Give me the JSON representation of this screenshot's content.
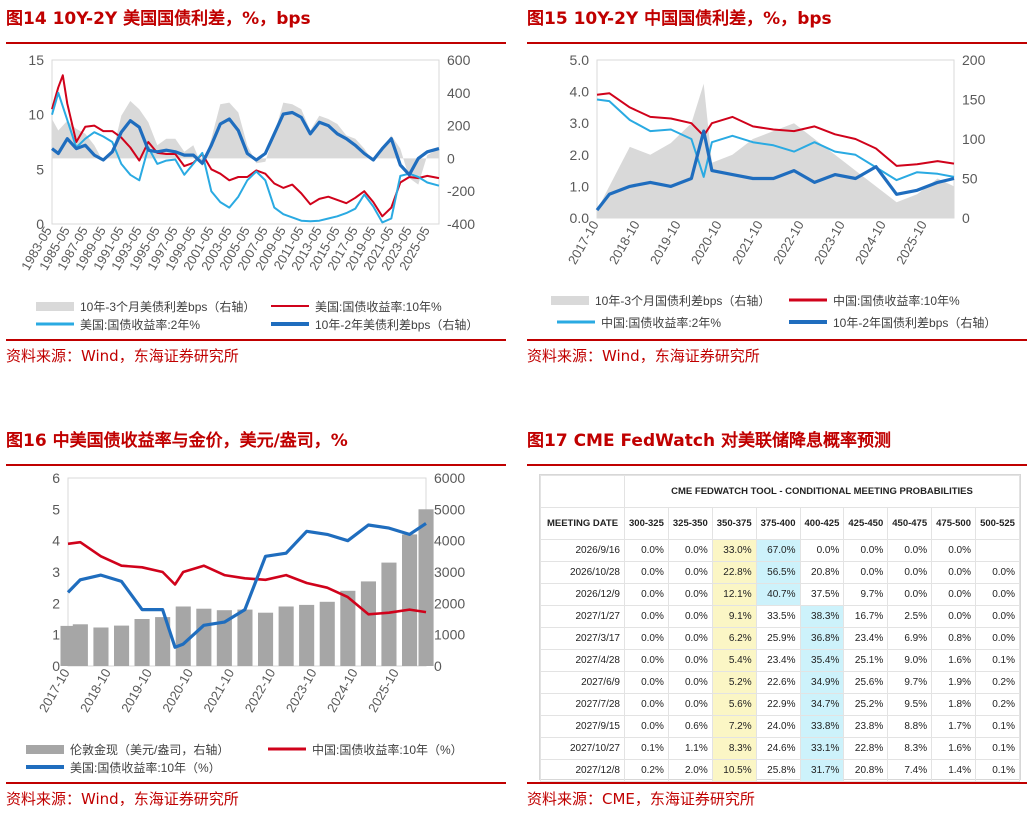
{
  "colors": {
    "red": "#d0021b",
    "blue": "#1f6dbe",
    "light_blue": "#2aaae2",
    "gray": "#d9d9d9",
    "bar_gray": "#a6a6a6",
    "brand_red": "#c00000",
    "highlight_yellow": "#fbf6c5",
    "highlight_blue": "#cdf2fb"
  },
  "panels": [
    {
      "title": "图14  10Y-2Y 美国国债利差，%，bps",
      "source": "资料来源：Wind，东海证券研究所"
    },
    {
      "title": "图15  10Y-2Y 中国国债利差，%，bps",
      "source": "资料来源：Wind，东海证券研究所"
    },
    {
      "title": "图16  中美国债收益率与金价，美元/盎司，%",
      "source": "资料来源：Wind，东海证券研究所"
    },
    {
      "title": "图17  CME FedWatch 对美联储降息概率预测",
      "source": "资料来源：CME，东海证券研究所"
    }
  ],
  "chart_data": [
    {
      "type": "line",
      "title": "10Y-2Y 美国国债利差，%，bps",
      "x_ticks": [
        "1983-05",
        "1985-05",
        "1987-05",
        "1989-05",
        "1991-05",
        "1993-05",
        "1995-05",
        "1997-05",
        "1999-05",
        "2001-05",
        "2003-05",
        "2005-05",
        "2007-05",
        "2009-05",
        "2011-05",
        "2013-05",
        "2015-05",
        "2017-05",
        "2019-05",
        "2021-05",
        "2023-05",
        "2025-05"
      ],
      "x_range": [
        1983.3,
        2026.3
      ],
      "y_left": {
        "ticks": [
          "0",
          "5",
          "10",
          "15"
        ],
        "range": [
          0,
          15
        ]
      },
      "y_right": {
        "ticks": [
          "-400",
          "-200",
          "0",
          "200",
          "400",
          "600"
        ],
        "range": [
          -400,
          600
        ]
      },
      "grid": false,
      "legend_position": "bottom",
      "series": [
        {
          "name": "10年-3个月美债利差bps（右轴）",
          "kind": "area",
          "axis": "right",
          "color": "#d9d9d9",
          "x": [
            1983.3,
            1984,
            1985,
            1986,
            1987,
            1988,
            1989,
            1990,
            1991,
            1992,
            1993,
            1994,
            1995,
            1996,
            1997,
            1998,
            1999,
            2000,
            2001,
            2002,
            2003,
            2004,
            2005,
            2006,
            2007,
            2008,
            2009,
            2010,
            2011,
            2012,
            2013,
            2014,
            2015,
            2016,
            2017,
            2018,
            2019,
            2020,
            2021,
            2022,
            2023,
            2024,
            2025,
            2026.3
          ],
          "values": [
            240,
            170,
            230,
            180,
            150,
            80,
            -20,
            30,
            260,
            350,
            300,
            220,
            80,
            120,
            120,
            40,
            80,
            -50,
            120,
            330,
            340,
            280,
            80,
            -30,
            -20,
            150,
            340,
            330,
            300,
            170,
            260,
            240,
            210,
            140,
            120,
            60,
            -20,
            60,
            140,
            60,
            -120,
            -160,
            20,
            60
          ]
        },
        {
          "name": "美国:国债收益率:10年%",
          "kind": "line",
          "axis": "left",
          "color": "#d0021b",
          "x": [
            1983.3,
            1984,
            1984.5,
            1985,
            1986,
            1987,
            1988,
            1989,
            1990,
            1991,
            1992,
            1993,
            1994,
            1995,
            1996,
            1997,
            1998,
            1999,
            2000,
            2001,
            2002,
            2003,
            2004,
            2005,
            2006,
            2007,
            2008,
            2009,
            2010,
            2011,
            2012,
            2013,
            2014,
            2015,
            2016,
            2017,
            2018,
            2019,
            2020,
            2021,
            2022,
            2023,
            2024,
            2025,
            2026.3
          ],
          "values": [
            10.5,
            12.5,
            13.6,
            11,
            7.5,
            8.9,
            9,
            8.5,
            8.5,
            7.9,
            7,
            5.8,
            7.5,
            6.5,
            6.4,
            6.4,
            5.3,
            5.6,
            6.4,
            5,
            4.6,
            4,
            4.3,
            4.3,
            4.9,
            4.6,
            3.7,
            3.3,
            3.6,
            2.8,
            1.8,
            2.3,
            2.5,
            2.2,
            1.9,
            2.4,
            3,
            2,
            0.7,
            1.5,
            3.8,
            4.3,
            4.2,
            4.4,
            4.2
          ]
        },
        {
          "name": "美国:国债收益率:2年%",
          "kind": "line",
          "axis": "left",
          "color": "#2aaae2",
          "x": [
            1983.3,
            1984,
            1985,
            1986,
            1987,
            1988,
            1989,
            1990,
            1991,
            1992,
            1993,
            1994,
            1995,
            1996,
            1997,
            1998,
            1999,
            2000,
            2001,
            2002,
            2003,
            2004,
            2005,
            2006,
            2007,
            2008,
            2009,
            2010,
            2011,
            2012,
            2013,
            2014,
            2015,
            2016,
            2017,
            2018,
            2019,
            2020,
            2021,
            2022,
            2023,
            2024,
            2025,
            2026.3
          ],
          "values": [
            10,
            12,
            9.5,
            7,
            7.8,
            8.4,
            8,
            7.5,
            5.5,
            4.5,
            4,
            7,
            5.5,
            5.8,
            5.9,
            4.5,
            5.5,
            6.5,
            3,
            2,
            1.5,
            2.5,
            4,
            4.8,
            4,
            1.5,
            0.9,
            0.6,
            0.3,
            0.25,
            0.3,
            0.5,
            0.7,
            1,
            1.4,
            2.7,
            1.6,
            0.15,
            0.5,
            4.4,
            4.6,
            4.3,
            3.8,
            3.5
          ]
        },
        {
          "name": "10年-2年美债利差bps（右轴）",
          "kind": "line",
          "axis": "right",
          "color": "#1f6dbe",
          "x": [
            1983.3,
            1984,
            1985,
            1986,
            1987,
            1988,
            1989,
            1990,
            1991,
            1992,
            1993,
            1994,
            1995,
            1996,
            1997,
            1998,
            1999,
            2000,
            2001,
            2002,
            2003,
            2004,
            2005,
            2006,
            2007,
            2008,
            2009,
            2010,
            2011,
            2012,
            2013,
            2014,
            2015,
            2016,
            2017,
            2018,
            2019,
            2020,
            2021,
            2022,
            2023,
            2024,
            2025,
            2026.3
          ],
          "values": [
            60,
            30,
            120,
            60,
            80,
            20,
            -10,
            40,
            160,
            230,
            190,
            50,
            40,
            50,
            40,
            20,
            20,
            -30,
            80,
            210,
            240,
            170,
            30,
            -10,
            30,
            150,
            270,
            280,
            250,
            150,
            220,
            200,
            150,
            120,
            80,
            30,
            -10,
            60,
            120,
            -40,
            -100,
            0,
            40,
            60
          ]
        }
      ]
    },
    {
      "type": "line",
      "title": "10Y-2Y 中国国债利差，%，bps",
      "x_ticks": [
        "2017-10",
        "2018-10",
        "2019-10",
        "2020-10",
        "2021-10",
        "2022-10",
        "2023-10",
        "2024-10",
        "2025-10"
      ],
      "x_range": [
        2017.7,
        2026.4
      ],
      "y_left": {
        "ticks": [
          "0.0",
          "1.0",
          "2.0",
          "3.0",
          "4.0",
          "5.0"
        ],
        "range": [
          0,
          5
        ]
      },
      "y_right": {
        "ticks": [
          "0",
          "50",
          "100",
          "150",
          "200"
        ],
        "range": [
          0,
          200
        ]
      },
      "grid": false,
      "legend_position": "bottom",
      "series": [
        {
          "name": "10年-3个月国债利差bps（右轴）",
          "kind": "area",
          "axis": "right",
          "color": "#d9d9d9",
          "x": [
            2017.7,
            2018,
            2018.5,
            2019,
            2019.5,
            2020,
            2020.3,
            2020.5,
            2021,
            2021.5,
            2022,
            2022.5,
            2023,
            2023.5,
            2024,
            2024.5,
            2025,
            2025.5,
            2026,
            2026.4
          ],
          "values": [
            10,
            40,
            90,
            80,
            95,
            120,
            170,
            70,
            80,
            100,
            110,
            120,
            100,
            80,
            60,
            40,
            20,
            30,
            50,
            40
          ]
        },
        {
          "name": "中国:国债收益率:10年%",
          "kind": "line",
          "axis": "left",
          "color": "#d0021b",
          "x": [
            2017.7,
            2018,
            2018.5,
            2019,
            2019.5,
            2020,
            2020.3,
            2020.5,
            2021,
            2021.5,
            2022,
            2022.5,
            2023,
            2023.5,
            2024,
            2024.5,
            2025,
            2025.5,
            2026,
            2026.4
          ],
          "values": [
            3.9,
            3.95,
            3.5,
            3.2,
            3.15,
            3.0,
            2.6,
            3.0,
            3.2,
            2.9,
            2.8,
            2.75,
            2.9,
            2.65,
            2.5,
            2.2,
            1.65,
            1.7,
            1.8,
            1.72
          ]
        },
        {
          "name": "中国:国债收益率:2年%",
          "kind": "line",
          "axis": "left",
          "color": "#2aaae2",
          "x": [
            2017.7,
            2018,
            2018.5,
            2019,
            2019.5,
            2020,
            2020.3,
            2020.5,
            2021,
            2021.5,
            2022,
            2022.5,
            2023,
            2023.5,
            2024,
            2024.5,
            2025,
            2025.5,
            2026,
            2026.4
          ],
          "values": [
            3.75,
            3.7,
            3.1,
            2.75,
            2.8,
            2.5,
            1.3,
            2.4,
            2.6,
            2.4,
            2.3,
            2.1,
            2.4,
            2.1,
            2.0,
            1.6,
            1.2,
            1.45,
            1.4,
            1.3
          ]
        },
        {
          "name": "10年-2年国债利差bps（右轴）",
          "kind": "line",
          "axis": "right",
          "color": "#1f6dbe",
          "x": [
            2017.7,
            2018,
            2018.5,
            2019,
            2019.5,
            2020,
            2020.3,
            2020.5,
            2021,
            2021.5,
            2022,
            2022.5,
            2023,
            2023.5,
            2024,
            2024.5,
            2025,
            2025.5,
            2026,
            2026.4
          ],
          "values": [
            10,
            30,
            40,
            45,
            40,
            50,
            110,
            60,
            55,
            50,
            50,
            60,
            45,
            55,
            50,
            65,
            30,
            35,
            45,
            50
          ]
        }
      ]
    },
    {
      "type": "line",
      "title": "中美国债收益率与金价，美元/盎司，%",
      "x_ticks": [
        "2017-10",
        "2018-10",
        "2019-10",
        "2020-10",
        "2021-10",
        "2022-10",
        "2023-10",
        "2024-10",
        "2025-10"
      ],
      "x_range": [
        2017.7,
        2026.4
      ],
      "y_left": {
        "ticks": [
          "0",
          "1",
          "2",
          "3",
          "4",
          "5",
          "6"
        ],
        "range": [
          0,
          6
        ]
      },
      "y_right": {
        "ticks": [
          "0",
          "1000",
          "2000",
          "3000",
          "4000",
          "5000",
          "6000"
        ],
        "range": [
          0,
          6000
        ]
      },
      "grid": false,
      "legend_position": "bottom",
      "series": [
        {
          "name": "伦敦金现（美元/盎司，右轴）",
          "kind": "bar",
          "axis": "right",
          "color": "#a6a6a6",
          "x": [
            2017.7,
            2018,
            2018.5,
            2019,
            2019.5,
            2020,
            2020.5,
            2021,
            2021.5,
            2022,
            2022.5,
            2023,
            2023.5,
            2024,
            2024.5,
            2025,
            2025.5,
            2026,
            2026.4
          ],
          "values": [
            1280,
            1330,
            1230,
            1290,
            1500,
            1560,
            1900,
            1830,
            1780,
            1800,
            1700,
            1900,
            1950,
            2050,
            2400,
            2700,
            3300,
            4200,
            5000
          ]
        },
        {
          "name": "中国:国债收益率:10年（%）",
          "kind": "line",
          "axis": "left",
          "color": "#d0021b",
          "x": [
            2017.7,
            2018,
            2018.5,
            2019,
            2019.5,
            2020,
            2020.3,
            2020.5,
            2021,
            2021.5,
            2022,
            2022.5,
            2023,
            2023.5,
            2024,
            2024.5,
            2025,
            2025.5,
            2026,
            2026.4
          ],
          "values": [
            3.9,
            3.95,
            3.5,
            3.2,
            3.15,
            3.0,
            2.6,
            3.0,
            3.2,
            2.9,
            2.8,
            2.75,
            2.9,
            2.65,
            2.5,
            2.2,
            1.65,
            1.7,
            1.8,
            1.72
          ]
        },
        {
          "name": "美国:国债收益率:10年（%）",
          "kind": "line",
          "axis": "left",
          "color": "#1f6dbe",
          "x": [
            2017.7,
            2018,
            2018.5,
            2019,
            2019.5,
            2020,
            2020.3,
            2020.5,
            2021,
            2021.5,
            2022,
            2022.5,
            2023,
            2023.5,
            2024,
            2024.5,
            2025,
            2025.5,
            2026,
            2026.4
          ],
          "values": [
            2.35,
            2.75,
            2.9,
            2.7,
            1.8,
            1.8,
            0.6,
            0.7,
            1.3,
            1.4,
            1.8,
            3.5,
            3.6,
            4.3,
            4.2,
            4.0,
            4.5,
            4.4,
            4.2,
            4.55
          ]
        }
      ]
    },
    {
      "type": "table",
      "title": "CME FEDWATCH TOOL - CONDITIONAL MEETING PROBABILITIES",
      "columns": [
        "MEETING DATE",
        "300-325",
        "325-350",
        "350-375",
        "375-400",
        "400-425",
        "425-450",
        "450-475",
        "475-500",
        "500-525"
      ],
      "rows": [
        [
          "2026/9/16",
          "0.0%",
          "0.0%",
          "33.0%",
          "67.0%",
          "0.0%",
          "0.0%",
          "0.0%",
          "0.0%",
          ""
        ],
        [
          "2026/10/28",
          "0.0%",
          "0.0%",
          "22.8%",
          "56.5%",
          "20.8%",
          "0.0%",
          "0.0%",
          "0.0%",
          "0.0%"
        ],
        [
          "2026/12/9",
          "0.0%",
          "0.0%",
          "12.1%",
          "40.7%",
          "37.5%",
          "9.7%",
          "0.0%",
          "0.0%",
          "0.0%"
        ],
        [
          "2027/1/27",
          "0.0%",
          "0.0%",
          "9.1%",
          "33.5%",
          "38.3%",
          "16.7%",
          "2.5%",
          "0.0%",
          "0.0%"
        ],
        [
          "2027/3/17",
          "0.0%",
          "0.0%",
          "6.2%",
          "25.9%",
          "36.8%",
          "23.4%",
          "6.9%",
          "0.8%",
          "0.0%"
        ],
        [
          "2027/4/28",
          "0.0%",
          "0.0%",
          "5.4%",
          "23.4%",
          "35.4%",
          "25.1%",
          "9.0%",
          "1.6%",
          "0.1%"
        ],
        [
          "2027/6/9",
          "0.0%",
          "0.0%",
          "5.2%",
          "22.6%",
          "34.9%",
          "25.6%",
          "9.7%",
          "1.9%",
          "0.2%"
        ],
        [
          "2027/7/28",
          "0.0%",
          "0.0%",
          "5.6%",
          "22.9%",
          "34.7%",
          "25.2%",
          "9.5%",
          "1.8%",
          "0.2%"
        ],
        [
          "2027/9/15",
          "0.0%",
          "0.6%",
          "7.2%",
          "24.0%",
          "33.8%",
          "23.8%",
          "8.8%",
          "1.7%",
          "0.1%"
        ],
        [
          "2027/10/27",
          "0.1%",
          "1.1%",
          "8.3%",
          "24.6%",
          "33.1%",
          "22.8%",
          "8.3%",
          "1.6%",
          "0.1%"
        ],
        [
          "2027/12/8",
          "0.2%",
          "2.0%",
          "10.5%",
          "25.8%",
          "31.7%",
          "20.8%",
          "7.4%",
          "1.4%",
          "0.1%"
        ]
      ],
      "highlight": {
        "yellow_columns": [
          "350-375"
        ],
        "blue_rows_by_column": {
          "375-400": [
            0,
            1,
            2
          ],
          "400-425": [
            3,
            4,
            5,
            6,
            7,
            8,
            9,
            10
          ]
        }
      }
    }
  ]
}
